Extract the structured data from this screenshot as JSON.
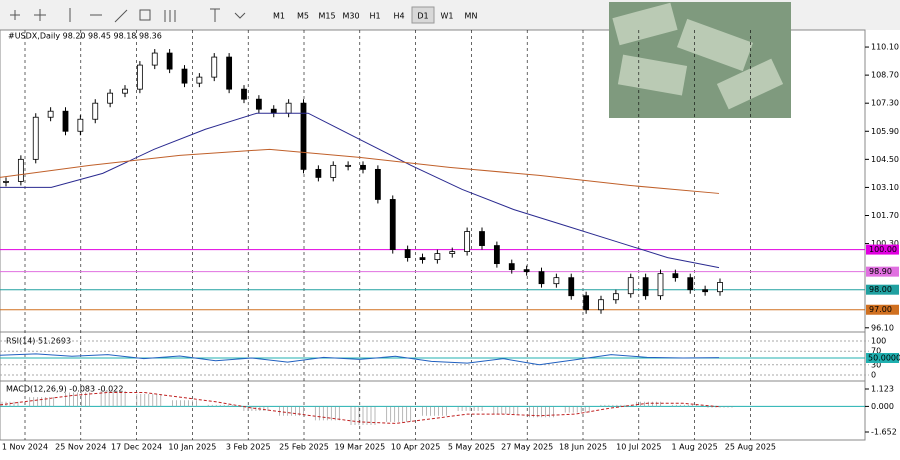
{
  "toolbar": {
    "timeframes": [
      "M1",
      "M5",
      "M15",
      "M30",
      "H1",
      "H4",
      "D1",
      "W1",
      "MN"
    ],
    "active": "D1"
  },
  "chart": {
    "type": "candlestick",
    "header": "#USDX,Daily  98.20 98.45 98.18 98.36",
    "closes": [
      103.4,
      104.5,
      106.6,
      106.9,
      105.9,
      106.5,
      107.3,
      107.8,
      108.0,
      109.2,
      109.8,
      109.0,
      108.3,
      108.6,
      109.6,
      108.0,
      107.5,
      107.0,
      106.8,
      107.3,
      104.0,
      103.6,
      104.2,
      104.2,
      104.0,
      102.5,
      100.0,
      99.6,
      99.5,
      99.8,
      99.9,
      100.9,
      100.2,
      99.3,
      99.0,
      98.9,
      98.3,
      98.6,
      97.7,
      97.0,
      97.5,
      97.8,
      98.6,
      97.7,
      98.8,
      98.6,
      98.0,
      97.9,
      98.36
    ],
    "ma_fast": [
      103.1,
      103.1,
      103.8,
      105.0,
      106.0,
      106.8,
      106.8,
      105.5,
      104.2,
      103.0,
      102.0,
      101.2,
      100.4,
      99.6,
      99.1
    ],
    "ma_slow": [
      103.6,
      104.2,
      104.7,
      105.0,
      104.6,
      104.1,
      103.7,
      103.2,
      102.8
    ],
    "ylim": [
      95.99,
      110.95
    ],
    "yticks": [
      {
        "value": 110.1,
        "label": "110.10"
      },
      {
        "value": 108.7,
        "label": "108.70"
      },
      {
        "value": 107.3,
        "label": "107.30"
      },
      {
        "value": 105.9,
        "label": "105.90"
      },
      {
        "value": 104.5,
        "label": "104.50"
      },
      {
        "value": 103.1,
        "label": "103.10"
      },
      {
        "value": 101.7,
        "label": "101.70"
      },
      {
        "value": 100.3,
        "label": "100.30"
      },
      {
        "value": 96.1,
        "label": "96.10"
      }
    ],
    "levels": [
      {
        "value": 100,
        "label": "100.00",
        "color": "#e000e0"
      },
      {
        "value": 98.9,
        "label": "98.90",
        "color": "#e070e0"
      },
      {
        "value": 98,
        "label": "98.00",
        "color": "#20a0a0"
      },
      {
        "value": 97,
        "label": "97.00",
        "color": "#d07020"
      }
    ],
    "dates": [
      "1 Nov 2024",
      "25 Nov 2024",
      "17 Dec 2024",
      "10 Jan 2025",
      "3 Feb 2025",
      "25 Feb 2025",
      "19 Mar 2025",
      "10 Apr 2025",
      "5 May 2025",
      "27 May 2025",
      "18 Jun 2025",
      "10 Jul 2025",
      "1 Aug 2025",
      "25 Aug 2025"
    ]
  },
  "rsi": {
    "header": "RSI(14) 51.2693",
    "values": [
      58,
      62,
      55,
      60,
      48,
      56,
      42,
      50,
      38,
      52,
      46,
      55,
      40,
      35,
      48,
      30,
      45,
      60,
      52,
      50,
      51
    ],
    "ylim": [
      0,
      100
    ],
    "yticks": [
      100,
      70,
      30,
      0
    ],
    "level": {
      "value": 50,
      "label": "50.0000"
    }
  },
  "macd": {
    "header": "MACD(12,26,9) -0.083 -0.022",
    "histogram": [
      0.3,
      0.6,
      0.9,
      1.0,
      0.8,
      0.4,
      0.1,
      -0.3,
      -0.6,
      -0.9,
      -1.2,
      -1.0,
      -0.6,
      -0.3,
      -0.5,
      -0.7,
      -0.4,
      0.1,
      0.3,
      0.1,
      -0.08
    ],
    "signal": [
      0.1,
      0.4,
      0.7,
      0.9,
      0.9,
      0.6,
      0.3,
      -0.1,
      -0.4,
      -0.7,
      -1.0,
      -1.1,
      -0.8,
      -0.5,
      -0.5,
      -0.6,
      -0.5,
      -0.1,
      0.2,
      0.2,
      -0.02
    ],
    "ylim": [
      -1.652,
      1.123
    ],
    "yticks": [
      {
        "value": 1.123,
        "label": "1.123"
      },
      {
        "value": 0,
        "label": "0.000"
      },
      {
        "value": -1.652,
        "label": "-1.652"
      }
    ]
  }
}
